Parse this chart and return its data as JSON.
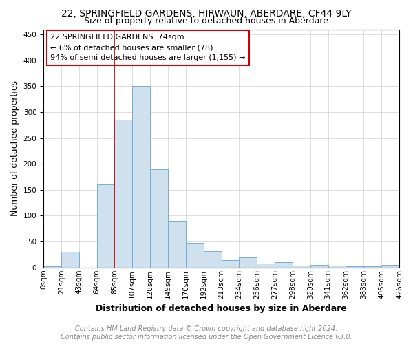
{
  "title": "22, SPRINGFIELD GARDENS, HIRWAUN, ABERDARE, CF44 9LY",
  "subtitle": "Size of property relative to detached houses in Aberdare",
  "xlabel": "Distribution of detached houses by size in Aberdare",
  "ylabel": "Number of detached properties",
  "bin_labels": [
    "0sqm",
    "21sqm",
    "43sqm",
    "64sqm",
    "85sqm",
    "107sqm",
    "128sqm",
    "149sqm",
    "170sqm",
    "192sqm",
    "213sqm",
    "234sqm",
    "256sqm",
    "277sqm",
    "298sqm",
    "320sqm",
    "341sqm",
    "362sqm",
    "383sqm",
    "405sqm",
    "426sqm"
  ],
  "bar_values": [
    3,
    30,
    0,
    160,
    285,
    350,
    190,
    90,
    48,
    32,
    14,
    19,
    7,
    10,
    4,
    5,
    4,
    2,
    2,
    5
  ],
  "bar_color": "#cfe0ef",
  "bar_edge_color": "#7aadd0",
  "vline_color": "#cc0000",
  "annotation_lines": [
    "22 SPRINGFIELD GARDENS: 74sqm",
    "← 6% of detached houses are smaller (78)",
    "94% of semi-detached houses are larger (1,155) →"
  ],
  "annotation_box_color": "#ffffff",
  "annotation_box_edge": "#cc0000",
  "ylim": [
    0,
    460
  ],
  "yticks": [
    0,
    50,
    100,
    150,
    200,
    250,
    300,
    350,
    400,
    450
  ],
  "footer_line1": "Contains HM Land Registry data © Crown copyright and database right 2024.",
  "footer_line2": "Contains public sector information licensed under the Open Government Licence v3.0.",
  "background_color": "#ffffff",
  "grid_color": "#d0d0d0",
  "title_fontsize": 10,
  "subtitle_fontsize": 9,
  "axis_label_fontsize": 9,
  "tick_fontsize": 7.5,
  "annotation_fontsize": 8,
  "footer_fontsize": 7
}
